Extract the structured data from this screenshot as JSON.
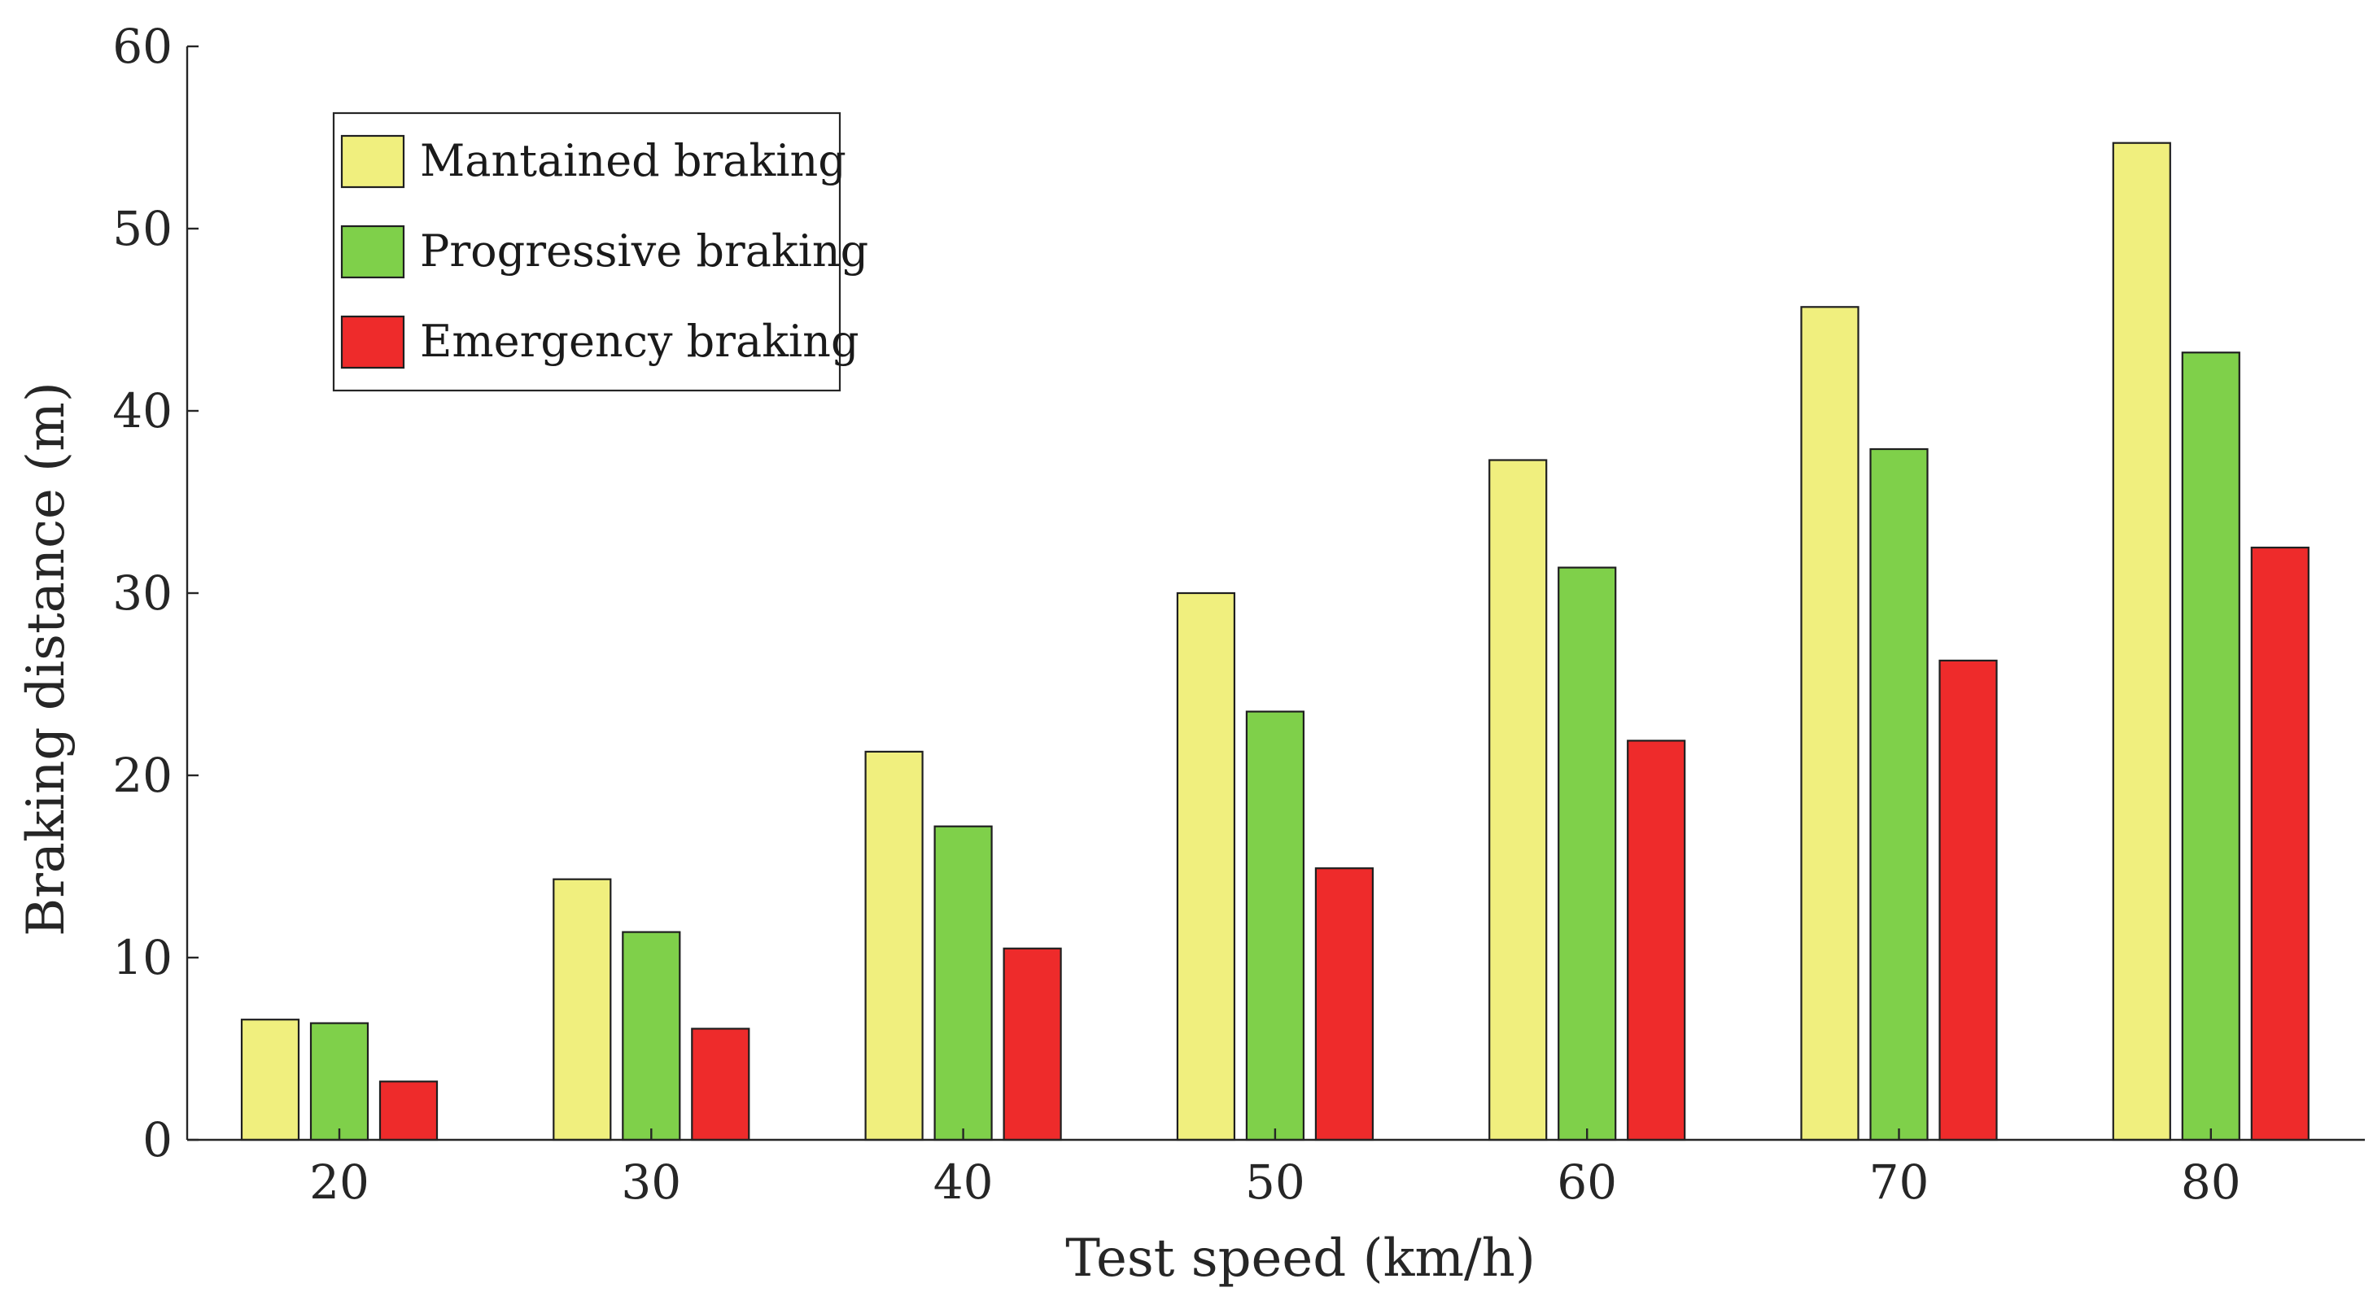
{
  "chart_data": {
    "type": "bar",
    "title": "",
    "xlabel": "Test speed (km/h)",
    "ylabel": "Braking distance (m)",
    "categories": [
      "20",
      "30",
      "40",
      "50",
      "60",
      "70",
      "80"
    ],
    "ylim": [
      0,
      60
    ],
    "yticks": [
      "0",
      "10",
      "20",
      "30",
      "40",
      "50",
      "60"
    ],
    "grid": false,
    "legend_position": "top-left",
    "series": [
      {
        "name": "Mantained braking",
        "color": "#f0ef7e",
        "values": [
          6.6,
          14.3,
          21.3,
          30.0,
          37.3,
          45.7,
          54.7
        ]
      },
      {
        "name": "Progressive braking",
        "color": "#7fd04a",
        "values": [
          6.4,
          11.4,
          17.2,
          23.5,
          31.4,
          37.9,
          43.2
        ]
      },
      {
        "name": "Emergency braking",
        "color": "#ee2b2b",
        "values": [
          3.2,
          6.1,
          10.5,
          14.9,
          21.9,
          26.3,
          32.5
        ]
      }
    ]
  }
}
